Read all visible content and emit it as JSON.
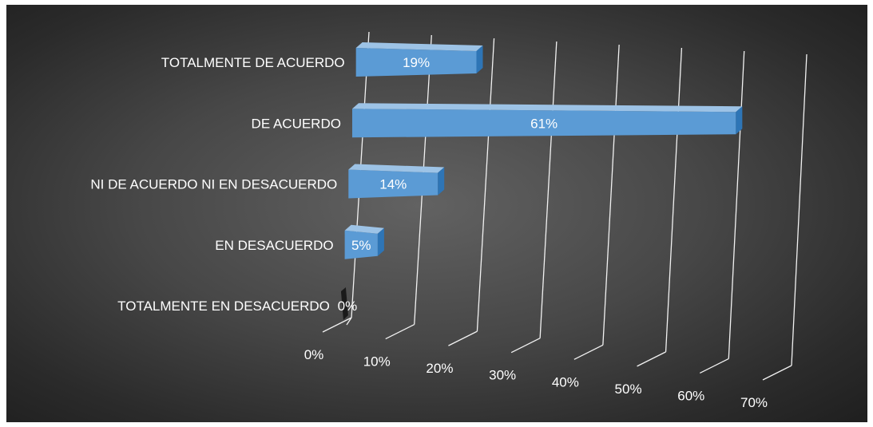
{
  "chart_data": {
    "type": "bar",
    "orientation": "horizontal",
    "style": "3d",
    "categories": [
      "TOTALMENTE DE ACUERDO",
      "DE ACUERDO",
      "NI DE ACUERDO NI EN DESACUERDO",
      "EN DESACUERDO",
      "TOTALMENTE EN DESACUERDO"
    ],
    "values": [
      19,
      61,
      14,
      5,
      0
    ],
    "data_labels": [
      "19%",
      "61%",
      "14%",
      "5%",
      "0%"
    ],
    "x_ticks": [
      "0%",
      "10%",
      "20%",
      "30%",
      "40%",
      "50%",
      "60%",
      "70%"
    ],
    "xlim": [
      0,
      70
    ],
    "title": "",
    "xlabel": "",
    "ylabel": "",
    "grid": true,
    "legend": "none",
    "colors": {
      "bar_front": "#5b9bd5",
      "bar_top": "#9dc3e6",
      "bar_side": "#2e75b6",
      "background": "#404040",
      "text": "#ffffff"
    }
  }
}
